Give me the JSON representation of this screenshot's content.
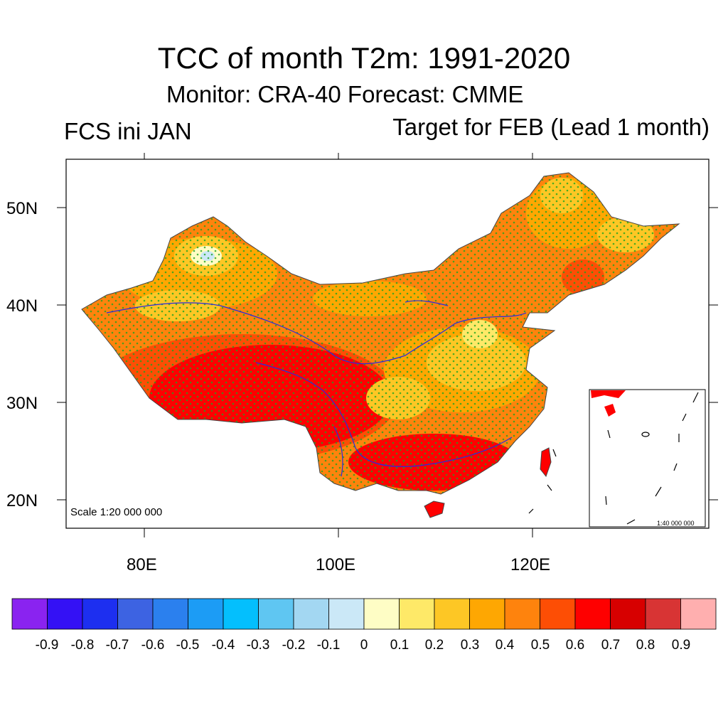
{
  "header": {
    "title": "TCC of month T2m: 1991-2020",
    "subtitle": "Monitor: CRA-40   Forecast: CMME",
    "left_label": "FCS ini JAN",
    "right_label": "Target for FEB (Lead 1 month)"
  },
  "map": {
    "lat_labels": [
      "50N",
      "40N",
      "30N",
      "20N"
    ],
    "lon_labels": [
      "80E",
      "100E",
      "120E"
    ],
    "scale_label": "Scale 1:20 000 000",
    "inset_scale_label": "1:40 000 000"
  },
  "colorbar": {
    "labels": [
      "-0.9",
      "-0.8",
      "-0.7",
      "-0.6",
      "-0.5",
      "-0.4",
      "-0.3",
      "-0.2",
      "-0.1",
      "0",
      "0.1",
      "0.2",
      "0.3",
      "0.4",
      "0.5",
      "0.6",
      "0.7",
      "0.8",
      "0.9"
    ],
    "colors": [
      "#8a23f0",
      "#3411f5",
      "#1d2ff0",
      "#3d63e2",
      "#2b80ee",
      "#1c9cf5",
      "#04bffd",
      "#5fc6f2",
      "#a3d7f2",
      "#cbe8f7",
      "#fefdc5",
      "#fee968",
      "#fdc725",
      "#fea702",
      "#fe830d",
      "#fd4e05",
      "#fe0000",
      "#d70000",
      "#d83434",
      "#ffafaf"
    ]
  },
  "colors": {
    "border_blue": "#2a2adf",
    "stipple_green": "#1fa31f"
  }
}
